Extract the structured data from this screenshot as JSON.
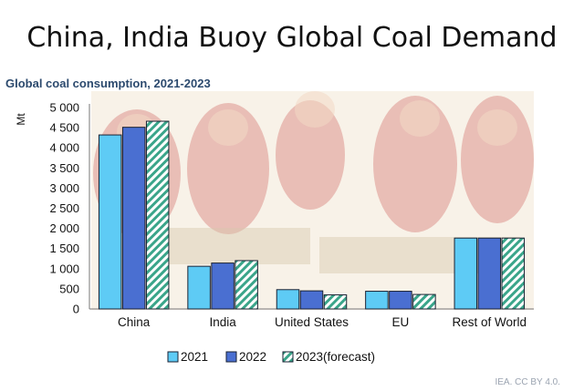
{
  "header": {
    "headline": "China, India Buoy Global Coal Demand",
    "subtitle": "Global coal consumption, 2021-2023",
    "credit": "IEA. CC BY 4.0."
  },
  "colors": {
    "s2021": "#5ecbf5",
    "s2022": "#4a6fd1",
    "s2023": "#3aa58a",
    "background_art_red": "#c23b35",
    "background_art_cream": "#f3e8d6"
  },
  "chart_data": {
    "type": "bar",
    "title": "Global coal consumption, 2021-2023",
    "ylabel": "Mt",
    "xlabel": "",
    "ylim": [
      0,
      5000
    ],
    "yticks": [
      0,
      500,
      1000,
      1500,
      2000,
      2500,
      3000,
      3500,
      4000,
      4500,
      5000
    ],
    "ytick_labels": [
      "0",
      "500",
      "1 000",
      "1 500",
      "2 000",
      "2 500",
      "3 000",
      "3 500",
      "4 000",
      "4 500",
      "5 000"
    ],
    "categories": [
      "China",
      "India",
      "United States",
      "EU",
      "Rest of World"
    ],
    "series": [
      {
        "name": "2021",
        "values": [
          4320,
          1060,
          480,
          440,
          1760
        ]
      },
      {
        "name": "2022",
        "values": [
          4510,
          1140,
          450,
          440,
          1760
        ]
      },
      {
        "name": "2023(forecast)",
        "values": [
          4660,
          1200,
          350,
          360,
          1760
        ]
      }
    ],
    "legend": "bottom-center"
  }
}
